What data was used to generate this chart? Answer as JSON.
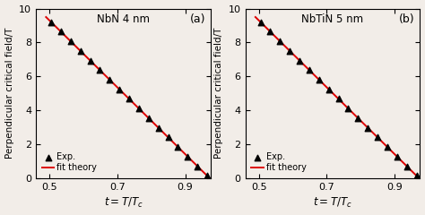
{
  "panel_a": {
    "label": "NbN 4 nm",
    "panel_letter": "(a)",
    "fit_x0": 0.49,
    "fit_x1": 0.972,
    "fit_y0": 9.5,
    "fit_y1": 0.0,
    "n_points": 17
  },
  "panel_b": {
    "label": "NbTiN 5 nm",
    "panel_letter": "(b)",
    "fit_x0": 0.49,
    "fit_x1": 0.972,
    "fit_y0": 9.5,
    "fit_y1": 0.0,
    "n_points": 17
  },
  "xlim": [
    0.46,
    0.975
  ],
  "ylim": [
    0,
    10
  ],
  "xticks": [
    0.5,
    0.7,
    0.9
  ],
  "yticks": [
    0,
    2,
    4,
    6,
    8,
    10
  ],
  "xlabel": "$t = T/T_c$",
  "ylabel": "Perpendicular critical field/T",
  "line_color": "#dd0000",
  "marker_color": "black",
  "background_color": "#f2ede8",
  "legend_exp": "Exp.",
  "legend_fit": "fit theory"
}
